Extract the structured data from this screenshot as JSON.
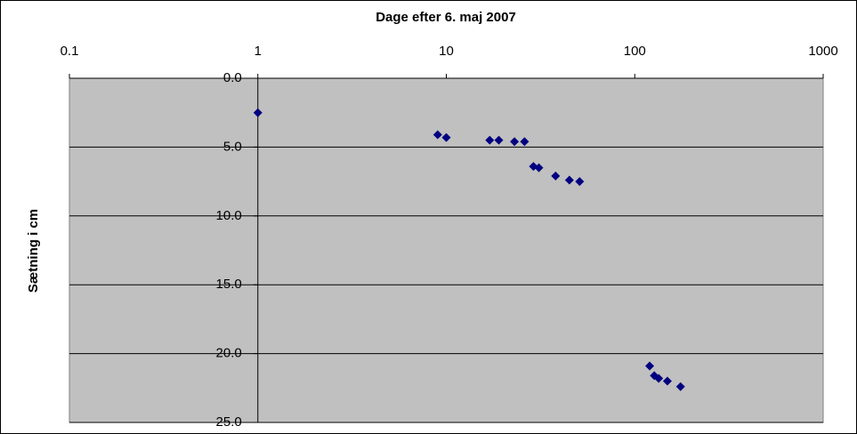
{
  "chart_data": {
    "type": "scatter",
    "title": "Dage efter 6. maj 2007",
    "y_label": "Sætning i cm",
    "x": [
      1,
      9,
      10,
      17,
      19,
      23,
      26,
      29,
      31,
      38,
      45,
      51,
      120,
      127,
      134,
      149,
      175
    ],
    "series": [
      {
        "color": "#000080",
        "values": [
          2.5,
          4.1,
          4.3,
          4.5,
          4.5,
          4.6,
          4.6,
          6.4,
          6.5,
          7.1,
          7.4,
          7.5,
          20.9,
          21.6,
          21.8,
          22.0,
          22.4
        ]
      }
    ],
    "xlim": [
      0.1,
      1000
    ],
    "xticks": [
      0.1,
      1,
      10,
      100,
      1000
    ],
    "x_log": true,
    "x_axis_position": "top",
    "ylim": [
      0,
      25
    ],
    "y_inverted": true,
    "yticks": [
      {
        "value": 0,
        "label": "0.0"
      },
      {
        "value": 5,
        "label": "5.0"
      },
      {
        "value": 10,
        "label": "10.0"
      },
      {
        "value": 15,
        "label": "15.0"
      },
      {
        "value": 20,
        "label": "20.0"
      },
      {
        "value": 25,
        "label": "25.0"
      }
    ],
    "y_axis_crosses_x": 1,
    "grid": true,
    "plot_background": "#c0c0c0"
  }
}
